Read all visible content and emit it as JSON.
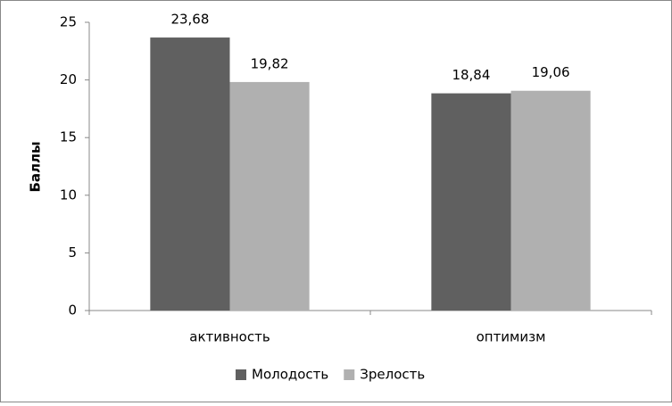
{
  "chart_data": {
    "type": "bar",
    "y_label": "Баллы",
    "categories": [
      "активность",
      "оптимизм"
    ],
    "series": [
      {
        "name": "Молодость",
        "color": "#606060",
        "values": [
          23.68,
          18.84
        ],
        "value_labels": [
          "23,68",
          "18,84"
        ]
      },
      {
        "name": "Зрелость",
        "color": "#b0b0b0",
        "values": [
          19.82,
          19.06
        ],
        "value_labels": [
          "19,82",
          "19,06"
        ]
      }
    ],
    "ylim": [
      0,
      25
    ],
    "yticks": [
      0,
      5,
      10,
      15,
      20,
      25
    ],
    "grid": false,
    "legend": "bottom"
  }
}
